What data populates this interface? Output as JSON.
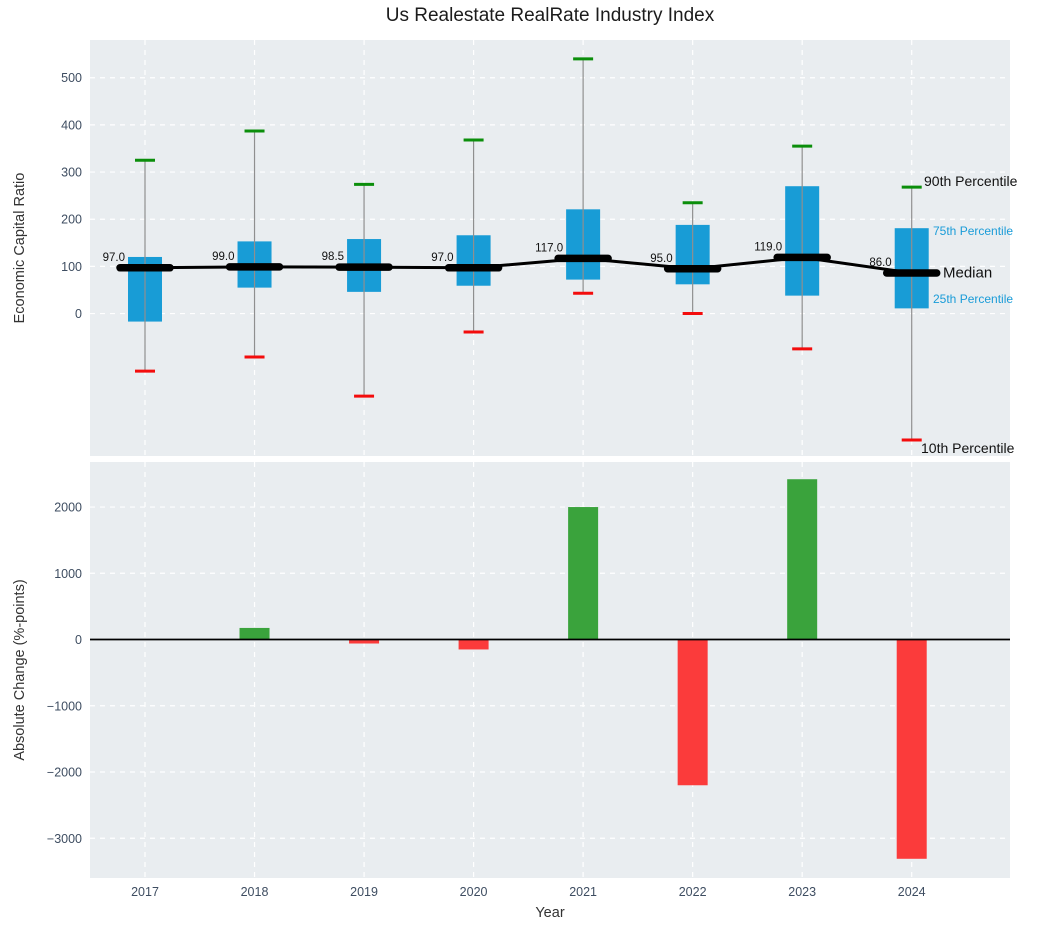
{
  "title": "Us Realestate RealRate Industry Index",
  "colors": {
    "plot_bg": "#e9edf0",
    "grid": "#ffffff",
    "tick_label": "#3e4d61",
    "box_fill": "#189cd6",
    "whisker": "#8f8f8f",
    "p90_cap": "#0b8e0b",
    "p10_cap": "#f30c0c",
    "median": "#000000",
    "bar_positive": "#3aa33c",
    "bar_negative": "#fb3b3b",
    "label_blue": "#1a9cd8",
    "label_dark": "#111111"
  },
  "percentile_labels": {
    "p90": "90th Percentile",
    "p75": "75th Percentile",
    "median": "Median",
    "p25": "25th Percentile",
    "p10": "10th Percentile"
  },
  "chart_data": [
    {
      "type": "box",
      "title": "Us Realestate RealRate Industry Index",
      "ylabel": "Economic Capital Ratio",
      "categories": [
        "2017",
        "2018",
        "2019",
        "2020",
        "2021",
        "2022",
        "2023",
        "2024"
      ],
      "series": {
        "p10": [
          -122,
          -92,
          -175,
          -39,
          43,
          0,
          -75,
          -268
        ],
        "p25": [
          -17,
          55,
          46,
          59,
          72,
          62,
          38,
          11
        ],
        "median": [
          97.0,
          99.0,
          98.5,
          97.0,
          117.0,
          95.0,
          119.0,
          86.0
        ],
        "p75": [
          120,
          153,
          158,
          166,
          221,
          188,
          270,
          181
        ],
        "p90": [
          325,
          387,
          274,
          368,
          540,
          235,
          355,
          268
        ]
      },
      "median_labels": [
        "97.0",
        "99.0",
        "98.5",
        "97.0",
        "117.0",
        "95.0",
        "119.0",
        "86.0"
      ],
      "yticks": {
        "values": [
          500,
          400,
          300,
          200,
          100,
          0
        ],
        "labels": [
          "500",
          "400",
          "300",
          "200",
          "100",
          "0"
        ]
      },
      "ylim": [
        -302,
        580
      ],
      "grid": true,
      "legend_position": "right-annotations"
    },
    {
      "type": "bar",
      "xlabel": "Year",
      "ylabel": "Absolute Change (%-points)",
      "categories": [
        "2017",
        "2018",
        "2019",
        "2020",
        "2021",
        "2022",
        "2023",
        "2024"
      ],
      "values": [
        0,
        175,
        -60,
        -150,
        2000,
        -2200,
        2420,
        -3310
      ],
      "yticks": {
        "values": [
          2000,
          1000,
          0,
          -1000,
          -2000,
          -3000
        ],
        "labels": [
          "2000",
          "1000",
          "0",
          "−1000",
          "−2000",
          "−3000"
        ]
      },
      "ylim": [
        -3600,
        2680
      ],
      "grid": true
    }
  ]
}
